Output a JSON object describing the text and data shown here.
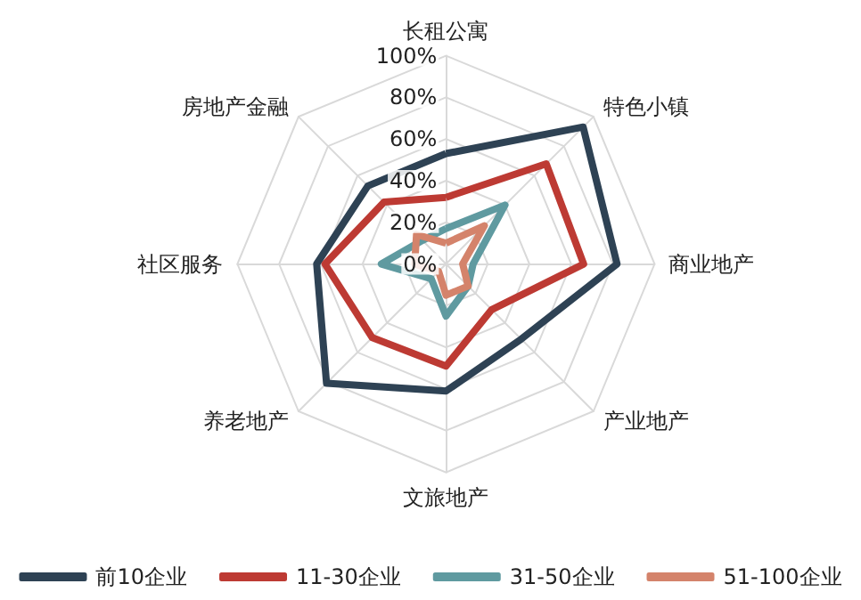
{
  "chart_data": {
    "type": "radar",
    "categories": [
      "长租公寓",
      "特色小镇",
      "商业地产",
      "产业地产",
      "文旅地产",
      "养老地产",
      "社区服务",
      "房地产金融"
    ],
    "series": [
      {
        "name": "前10企业",
        "color": "#2e4254",
        "values": [
          53,
          93,
          82,
          51,
          61,
          81,
          62,
          53
        ]
      },
      {
        "name": "11-30企业",
        "color": "#bd3a33",
        "values": [
          32,
          68,
          66,
          31,
          49,
          50,
          58,
          42
        ]
      },
      {
        "name": "31-50企业",
        "color": "#5f9aa0",
        "values": [
          17,
          40,
          13,
          15,
          25,
          10,
          31,
          16
        ]
      },
      {
        "name": "51-100企业",
        "color": "#d4836b",
        "values": [
          10,
          26,
          8,
          15,
          15,
          5,
          15,
          20
        ]
      }
    ],
    "ylim": [
      0,
      100
    ],
    "yticks": [
      {
        "value": 0,
        "label": "0%"
      },
      {
        "value": 20,
        "label": "20%"
      },
      {
        "value": 40,
        "label": "40%"
      },
      {
        "value": 60,
        "label": "60%"
      },
      {
        "value": 80,
        "label": "80%"
      },
      {
        "value": 100,
        "label": "100%"
      }
    ],
    "grid": true,
    "legend": "bottom",
    "marker": "none",
    "line_style": "solid"
  }
}
